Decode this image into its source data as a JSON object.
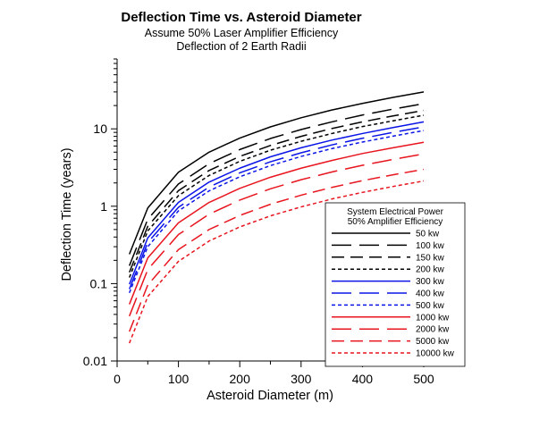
{
  "chart_data": {
    "type": "line",
    "title": "Deflection Time vs. Asteroid Diameter",
    "subtitle_lines": [
      "Assume 50% Laser Amplifier Efficiency",
      "Deflection of 2 Earth Radii"
    ],
    "xlabel": "Asteroid Diameter (m)",
    "ylabel": "Deflection Time (years)",
    "x_scale": "linear",
    "y_scale": "log",
    "xlim": [
      0,
      500
    ],
    "ylim": [
      0.01,
      80
    ],
    "x_ticks": [
      0,
      100,
      200,
      300,
      400,
      500
    ],
    "x_tick_labels": [
      "0",
      "100",
      "200",
      "300",
      "400",
      "500"
    ],
    "y_ticks": [
      0.01,
      0.1,
      1,
      10
    ],
    "y_tick_labels": [
      "0.01",
      "0.1",
      "1",
      "10"
    ],
    "grid": false,
    "legend": {
      "placement": "bottom-right",
      "title_lines": [
        "System Electrical Power",
        "50% Amplifier Efficiency"
      ]
    },
    "x": [
      20,
      50,
      100,
      150,
      200,
      250,
      300,
      350,
      400,
      450,
      500
    ],
    "series": [
      {
        "name": "50 kw",
        "color": "#000000",
        "dash": "solid",
        "values": [
          0.24,
          0.95,
          2.75,
          5.0,
          7.6,
          10.6,
          13.9,
          17.5,
          21.3,
          25.5,
          30.0
        ]
      },
      {
        "name": "100 kw",
        "color": "#000000",
        "dash": "long",
        "values": [
          0.17,
          0.68,
          1.94,
          3.55,
          5.4,
          7.5,
          9.8,
          12.3,
          15.1,
          18.0,
          21.2
        ]
      },
      {
        "name": "150 kw",
        "color": "#000000",
        "dash": "medium",
        "values": [
          0.14,
          0.55,
          1.59,
          2.9,
          4.4,
          6.1,
          8.0,
          10.1,
          12.3,
          14.7,
          17.3
        ]
      },
      {
        "name": "200 kw",
        "color": "#000000",
        "dash": "short",
        "values": [
          0.12,
          0.48,
          1.37,
          2.5,
          3.8,
          5.3,
          6.9,
          8.7,
          10.7,
          12.7,
          15.0
        ]
      },
      {
        "name": "300 kw",
        "color": "#0a14e6",
        "dash": "solid",
        "values": [
          0.098,
          0.39,
          1.12,
          2.05,
          3.1,
          4.35,
          5.7,
          7.15,
          8.7,
          10.4,
          12.3
        ]
      },
      {
        "name": "400 kw",
        "color": "#0a14e6",
        "dash": "long",
        "values": [
          0.085,
          0.34,
          0.97,
          1.77,
          2.7,
          3.75,
          4.9,
          6.2,
          7.55,
          9.0,
          10.6
        ]
      },
      {
        "name": "500 kw",
        "color": "#0a14e6",
        "dash": "short",
        "values": [
          0.076,
          0.3,
          0.87,
          1.58,
          2.4,
          3.35,
          4.4,
          5.55,
          6.75,
          8.05,
          9.5
        ]
      },
      {
        "name": "1000 kw",
        "color": "#e8141e",
        "dash": "solid",
        "values": [
          0.054,
          0.215,
          0.61,
          1.12,
          1.7,
          2.37,
          3.1,
          3.9,
          4.8,
          5.7,
          6.7
        ]
      },
      {
        "name": "2000 kw",
        "color": "#e8141e",
        "dash": "long",
        "values": [
          0.038,
          0.152,
          0.43,
          0.79,
          1.2,
          1.68,
          2.2,
          2.77,
          3.38,
          4.03,
          4.75
        ]
      },
      {
        "name": "5000 kw",
        "color": "#e8141e",
        "dash": "medium",
        "values": [
          0.024,
          0.096,
          0.275,
          0.5,
          0.76,
          1.06,
          1.39,
          1.75,
          2.14,
          2.55,
          3.0
        ]
      },
      {
        "name": "10000 kw",
        "color": "#e8141e",
        "dash": "short",
        "values": [
          0.017,
          0.068,
          0.194,
          0.355,
          0.54,
          0.75,
          0.98,
          1.24,
          1.51,
          1.8,
          2.12
        ]
      }
    ]
  }
}
